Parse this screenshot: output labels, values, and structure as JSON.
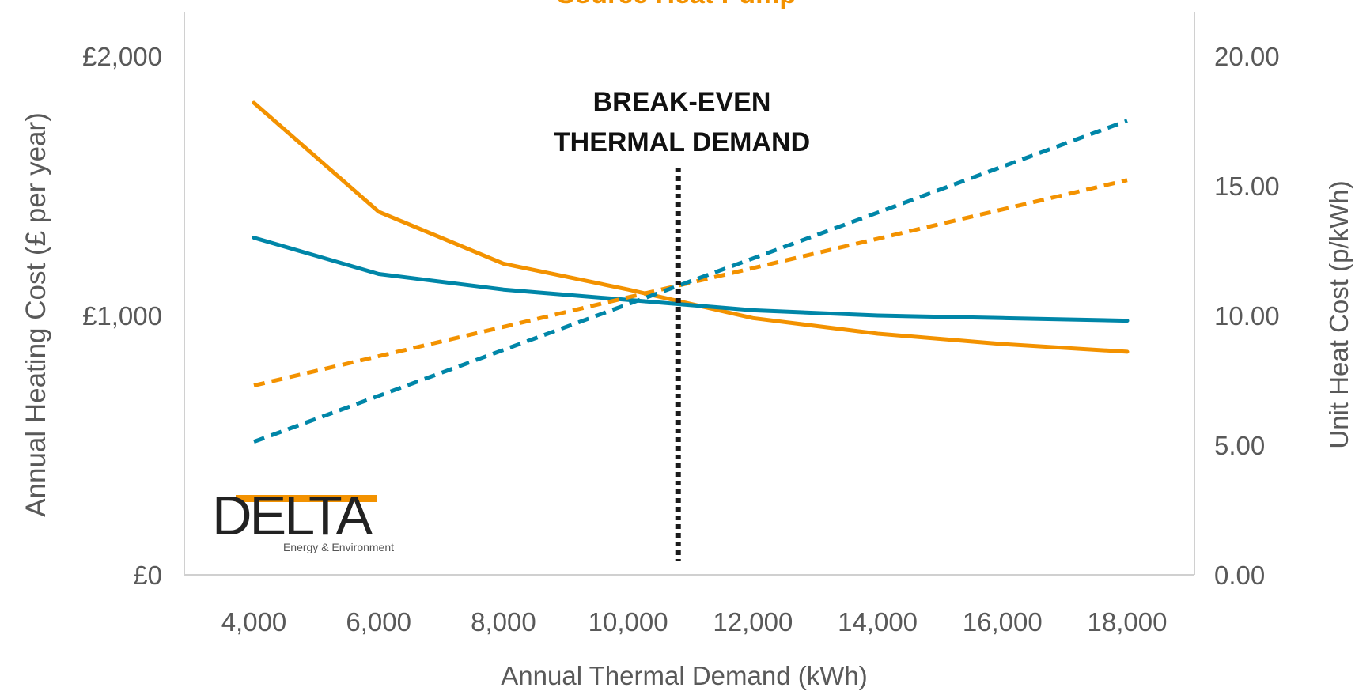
{
  "chart_data": {
    "type": "line",
    "title": "Source Heat Pump",
    "xlabel": "Annual Thermal Demand (kWh)",
    "ylabel_left": "Annual Heating Cost (£ per year)",
    "ylabel_right": "Unit Heat Cost (p/kWh)",
    "x": [
      4000,
      6000,
      8000,
      10000,
      12000,
      14000,
      16000,
      18000
    ],
    "x_tick_labels": [
      "4,000",
      "6,000",
      "8,000",
      "10,000",
      "12,000",
      "14,000",
      "16,000",
      "18,000"
    ],
    "ylim_left": [
      0,
      2000
    ],
    "y_tick_labels_left": [
      "£0",
      "£1,000",
      "£2,000"
    ],
    "ylim_right": [
      0,
      20
    ],
    "y_tick_labels_right": [
      "0.00",
      "5.00",
      "10.00",
      "15.00",
      "20.00"
    ],
    "grid": false,
    "series": [
      {
        "color": "#F39200",
        "style": "solid",
        "axis": "right",
        "values": [
          18.2,
          14.0,
          12.0,
          11.0,
          9.9,
          9.3,
          8.9,
          8.6
        ]
      },
      {
        "color": "#0086A8",
        "style": "solid",
        "axis": "right",
        "values": [
          13.0,
          11.6,
          11.0,
          10.6,
          10.2,
          10.0,
          9.9,
          9.8
        ]
      },
      {
        "color": "#F39200",
        "style": "dashed",
        "axis": "left",
        "values": [
          730,
          843,
          956,
          1070,
          1183,
          1296,
          1409,
          1522
        ]
      },
      {
        "color": "#0086A8",
        "style": "dashed",
        "axis": "left",
        "values": [
          513,
          690,
          867,
          1044,
          1220,
          1397,
          1574,
          1751
        ]
      }
    ],
    "annotation": {
      "lines": [
        "BREAK-EVEN",
        "THERMAL DEMAND"
      ],
      "x": 10800,
      "color": "#1a1a1a"
    },
    "logo": {
      "name": "DELTA",
      "tagline": "Energy & Environment",
      "accent": "#F39200",
      "color": "#222222"
    }
  }
}
